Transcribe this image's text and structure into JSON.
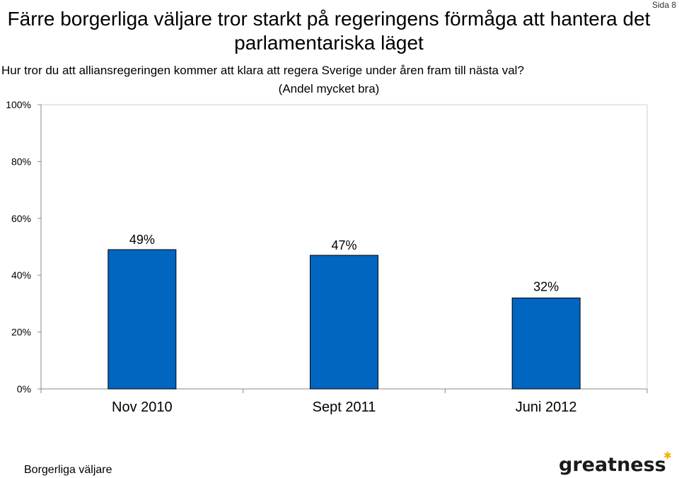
{
  "page_number": "Sida 8",
  "footer": {
    "label": "Borgerliga väljare",
    "logo": "greatness"
  },
  "colors": {
    "bar": "#0066c0",
    "axis": "#888888"
  },
  "chart_data": {
    "type": "bar",
    "title": "Färre borgerliga väljare tror starkt på regeringens förmåga att hantera det parlamentariska läget",
    "question": "Hur tror du att alliansregeringen kommer att klara att regera Sverige under åren fram till nästa val?",
    "subtitle": "(Andel mycket bra)",
    "categories": [
      "Nov 2010",
      "Sept 2011",
      "Juni 2012"
    ],
    "values": [
      49,
      47,
      32
    ],
    "data_labels": [
      "49%",
      "47%",
      "32%"
    ],
    "ylim": [
      0,
      100
    ],
    "yticks": [
      0,
      20,
      40,
      60,
      80,
      100
    ],
    "ytick_labels": [
      "0%",
      "20%",
      "40%",
      "60%",
      "80%",
      "100%"
    ],
    "xlabel": "",
    "ylabel": "",
    "grid": false,
    "legend": "none"
  }
}
